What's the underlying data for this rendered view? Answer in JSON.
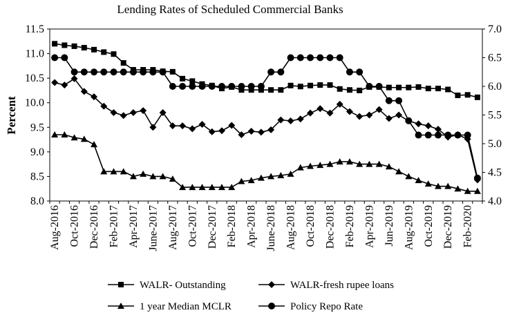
{
  "chart_data": {
    "type": "line",
    "title": "Lending Rates of Scheduled Commercial Banks",
    "ylabel": "Percent",
    "y2label": "",
    "ylim": [
      8.0,
      11.5
    ],
    "y2lim": [
      4.0,
      7.0
    ],
    "yticks": [
      "8.0",
      "8.5",
      "9.0",
      "9.5",
      "10.0",
      "10.5",
      "11.0",
      "11.5"
    ],
    "y2ticks": [
      "4.0",
      "4.5",
      "5.0",
      "5.5",
      "6.0",
      "6.5",
      "7.0"
    ],
    "xtick_labels": [
      "Aug-2016",
      "Oct-2016",
      "Dec-2016",
      "Feb-2017",
      "Apr-2017",
      "June-2017",
      "Aug-2017",
      "Oct-2017",
      "Dec-2017",
      "Feb-2018",
      "Apr-2018",
      "June-2018",
      "Aug-2018",
      "Oct-2018",
      "Dec-2018",
      "Feb-2019",
      "Apr-2019",
      "Jun-2019",
      "Aug-2019",
      "Oct-2019",
      "Dec-2019",
      "Feb-2020"
    ],
    "x_start": "2016-08",
    "n_points": 44,
    "legend_position": "bottom",
    "grid": false,
    "series": [
      {
        "name": "WALR- Outstanding",
        "marker": "square",
        "axis": "left",
        "values": [
          11.2,
          11.17,
          11.15,
          11.12,
          11.08,
          11.03,
          10.99,
          10.81,
          10.67,
          10.67,
          10.67,
          10.64,
          10.63,
          10.49,
          10.44,
          10.38,
          10.35,
          10.29,
          10.32,
          10.26,
          10.26,
          10.26,
          10.26,
          10.26,
          10.35,
          10.33,
          10.35,
          10.36,
          10.36,
          10.28,
          10.26,
          10.25,
          10.32,
          10.32,
          10.31,
          10.31,
          10.31,
          10.32,
          10.29,
          10.29,
          10.27,
          10.15,
          10.16,
          10.11
        ]
      },
      {
        "name": "WALR-fresh rupee loans",
        "marker": "diamond",
        "axis": "left",
        "values": [
          10.41,
          10.36,
          10.49,
          10.23,
          10.12,
          9.93,
          9.8,
          9.74,
          9.8,
          9.84,
          9.5,
          9.8,
          9.53,
          9.53,
          9.47,
          9.56,
          9.41,
          9.43,
          9.54,
          9.35,
          9.42,
          9.4,
          9.45,
          9.65,
          9.63,
          9.67,
          9.79,
          9.88,
          9.79,
          9.97,
          9.82,
          9.72,
          9.75,
          9.86,
          9.68,
          9.75,
          9.63,
          9.57,
          9.53,
          9.46,
          9.3,
          9.35,
          9.26,
          8.43
        ]
      },
      {
        "name": "1 year Median MCLR",
        "marker": "triangle",
        "axis": "left",
        "values": [
          9.35,
          9.35,
          9.29,
          9.26,
          9.15,
          8.6,
          8.6,
          8.6,
          8.5,
          8.55,
          8.5,
          8.5,
          8.45,
          8.28,
          8.28,
          8.28,
          8.28,
          8.28,
          8.28,
          8.4,
          8.42,
          8.47,
          8.5,
          8.52,
          8.55,
          8.68,
          8.71,
          8.73,
          8.75,
          8.8,
          8.8,
          8.75,
          8.75,
          8.75,
          8.7,
          8.6,
          8.5,
          8.42,
          8.35,
          8.3,
          8.3,
          8.25,
          8.2,
          8.2
        ]
      },
      {
        "name": "Policy Repo Rate",
        "marker": "circle",
        "axis": "right",
        "values": [
          6.5,
          6.5,
          6.25,
          6.25,
          6.25,
          6.25,
          6.25,
          6.25,
          6.25,
          6.25,
          6.25,
          6.25,
          6.0,
          6.0,
          6.0,
          6.0,
          6.0,
          6.0,
          6.0,
          6.0,
          6.0,
          6.0,
          6.25,
          6.25,
          6.5,
          6.5,
          6.5,
          6.5,
          6.5,
          6.5,
          6.25,
          6.25,
          6.0,
          6.0,
          5.75,
          5.75,
          5.4,
          5.15,
          5.15,
          5.15,
          5.15,
          5.15,
          5.15,
          4.4
        ]
      }
    ]
  }
}
